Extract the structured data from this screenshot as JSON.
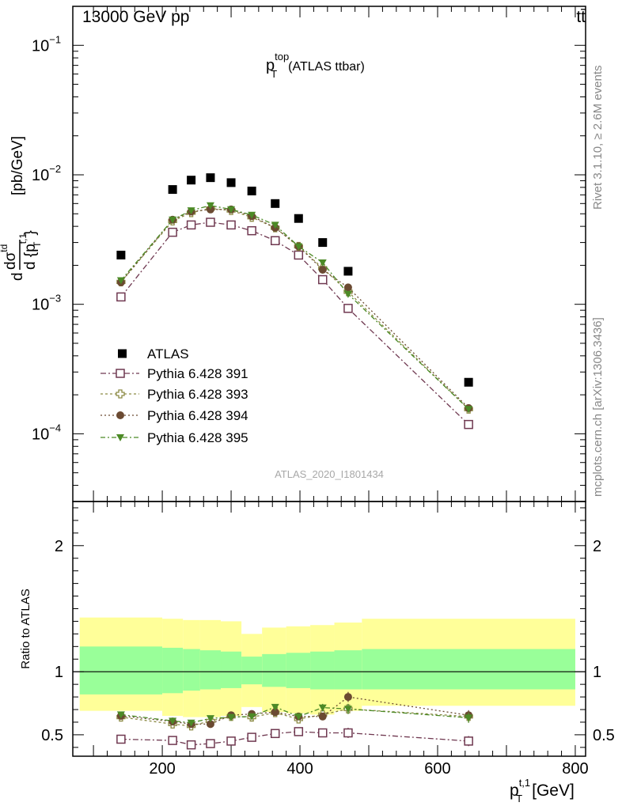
{
  "header": {
    "left": "13000 GeV pp",
    "right": "tt̄"
  },
  "title": {
    "main": "p",
    "sup": "top",
    "sub": "T",
    "rest": "(ATLAS ttbar)"
  },
  "side_labels": {
    "rivet": "Rivet 3.1.10, ≥ 2.6M events",
    "mcplots": "mcplots.cern.ch [arXiv:1306.3436]"
  },
  "watermark": "ATLAS_2020_I1801434",
  "ylabel_top": {
    "d1": "d",
    "dsigma": "dσ",
    "sigma_sup": "t̄d",
    "d2": "d {p",
    "sup": "t,1",
    "sub": "T",
    "close": "}",
    "unit": "[pb/GeV]"
  },
  "ylabel_ratio": "Ratio to ATLAS",
  "xlabel": {
    "main": "p",
    "sup": "t,1",
    "sub": "T",
    "unit": "[GeV]"
  },
  "chart_data": {
    "type": "scatter",
    "log_y_top": true,
    "xlim": [
      70,
      815
    ],
    "ylim_top": [
      3e-05,
      0.2
    ],
    "ylim_ratio": [
      0.33,
      2.35
    ],
    "xticks": [
      {
        "v": 200,
        "label": "200"
      },
      {
        "v": 400,
        "label": "400"
      },
      {
        "v": 600,
        "label": "600"
      },
      {
        "v": 800,
        "label": "800"
      }
    ],
    "yticks_top": [
      {
        "v": 0.1,
        "base": "10",
        "exp": "−1"
      },
      {
        "v": 0.01,
        "base": "10",
        "exp": "−2"
      },
      {
        "v": 0.001,
        "base": "10",
        "exp": "−3"
      },
      {
        "v": 0.0001,
        "base": "10",
        "exp": "−4"
      }
    ],
    "yticks_ratio": [
      {
        "v": 2,
        "label": "2"
      },
      {
        "v": 1,
        "label": "1"
      },
      {
        "v": 0.5,
        "label": "0.5"
      }
    ],
    "x": [
      140,
      215,
      242,
      270,
      300,
      330,
      364,
      398,
      433,
      470,
      645
    ],
    "bins": [
      [
        80,
        200
      ],
      [
        200,
        230
      ],
      [
        230,
        255
      ],
      [
        255,
        285
      ],
      [
        285,
        315
      ],
      [
        315,
        345
      ],
      [
        345,
        380
      ],
      [
        380,
        415
      ],
      [
        415,
        450
      ],
      [
        450,
        490
      ],
      [
        490,
        800
      ]
    ],
    "band_inner": [
      [
        0.82,
        1.2
      ],
      [
        0.83,
        1.19
      ],
      [
        0.85,
        1.18
      ],
      [
        0.86,
        1.17
      ],
      [
        0.87,
        1.16
      ],
      [
        0.9,
        1.12
      ],
      [
        0.88,
        1.14
      ],
      [
        0.87,
        1.15
      ],
      [
        0.86,
        1.16
      ],
      [
        0.86,
        1.17
      ],
      [
        0.86,
        1.18
      ]
    ],
    "band_outer": [
      [
        0.69,
        1.43
      ],
      [
        0.65,
        1.42
      ],
      [
        0.64,
        1.41
      ],
      [
        0.64,
        1.41
      ],
      [
        0.65,
        1.4
      ],
      [
        0.72,
        1.3
      ],
      [
        0.68,
        1.35
      ],
      [
        0.67,
        1.36
      ],
      [
        0.66,
        1.37
      ],
      [
        0.69,
        1.39
      ],
      [
        0.73,
        1.42
      ]
    ],
    "reference": {
      "name": "ATLAS",
      "color": "#000000",
      "values": [
        0.0024,
        0.0077,
        0.0091,
        0.0095,
        0.0087,
        0.0075,
        0.006,
        0.0046,
        0.003,
        0.0018,
        0.00025
      ]
    },
    "series": [
      {
        "name": "Pythia 6.428 391",
        "color": "#6f3850",
        "marker": "open-square",
        "dash": "7,3,2,3",
        "values": [
          0.00114,
          0.0036,
          0.0041,
          0.0043,
          0.0041,
          0.0037,
          0.0031,
          0.0024,
          0.00155,
          0.00093,
          0.000118
        ],
        "ratio": [
          0.465,
          0.455,
          0.42,
          0.43,
          0.45,
          0.48,
          0.51,
          0.525,
          0.515,
          0.515,
          0.45
        ]
      },
      {
        "name": "Pythia 6.428 393",
        "color": "#8c8a44",
        "marker": "open-cross",
        "dash": "3,3",
        "values": [
          0.00149,
          0.0044,
          0.0051,
          0.0055,
          0.0053,
          0.0047,
          0.0039,
          0.0028,
          0.0019,
          0.00125,
          0.000155
        ],
        "ratio": [
          0.64,
          0.585,
          0.57,
          0.61,
          0.645,
          0.64,
          0.675,
          0.625,
          0.66,
          0.705,
          0.645
        ]
      },
      {
        "name": "Pythia 6.428 394",
        "color": "#6b4a32",
        "marker": "filled-circle",
        "dash": "2,3",
        "values": [
          0.00148,
          0.0045,
          0.0052,
          0.0054,
          0.0054,
          0.0048,
          0.0039,
          0.0028,
          0.00185,
          0.00135,
          0.000158
        ],
        "ratio": [
          0.65,
          0.605,
          0.585,
          0.585,
          0.655,
          0.665,
          0.68,
          0.645,
          0.645,
          0.8,
          0.655
        ]
      },
      {
        "name": "Pythia 6.428 395",
        "color": "#4c8a26",
        "marker": "filled-triangle-down",
        "dash": "6,3,2,3",
        "values": [
          0.00153,
          0.0045,
          0.0053,
          0.0058,
          0.0054,
          0.0049,
          0.0041,
          0.0028,
          0.0021,
          0.0012,
          0.000155
        ],
        "ratio": [
          0.66,
          0.61,
          0.595,
          0.63,
          0.64,
          0.645,
          0.72,
          0.645,
          0.715,
          0.705,
          0.635
        ]
      }
    ]
  }
}
